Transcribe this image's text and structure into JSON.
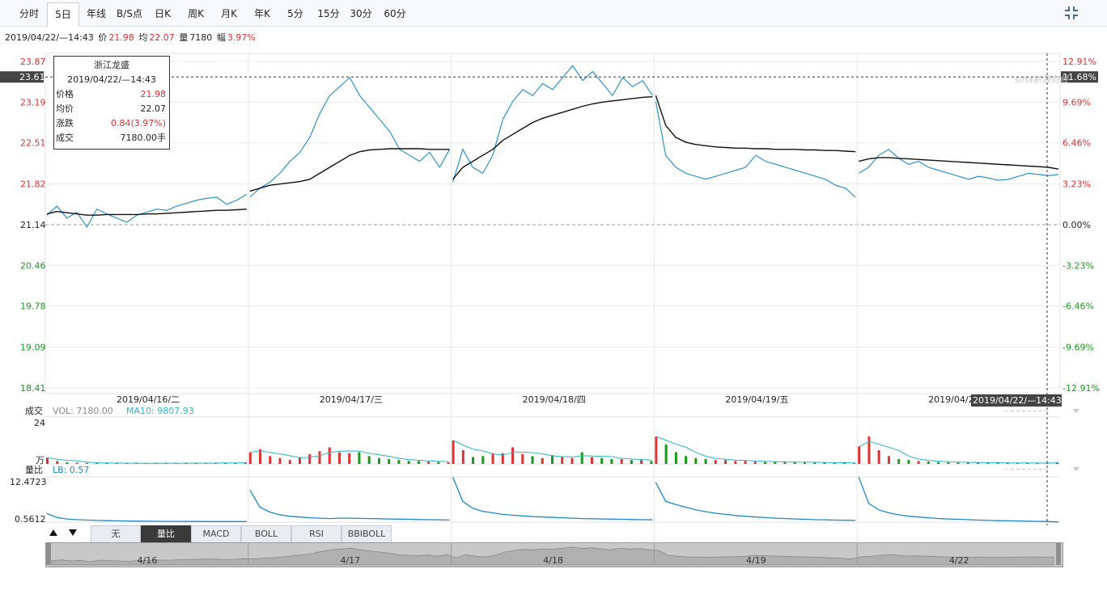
{
  "tabs": [
    {
      "label": "分时",
      "active": false
    },
    {
      "label": "5日",
      "active": true
    },
    {
      "label": "年线",
      "active": false
    },
    {
      "label": "B/S点",
      "active": false
    },
    {
      "label": "日K",
      "active": false
    },
    {
      "label": "周K",
      "active": false
    },
    {
      "label": "月K",
      "active": false
    },
    {
      "label": "年K",
      "active": false
    },
    {
      "label": "5分",
      "active": false
    },
    {
      "label": "15分",
      "active": false
    },
    {
      "label": "30分",
      "active": false
    },
    {
      "label": "60分",
      "active": false
    }
  ],
  "infobar": {
    "datetime": "2019/04/22/—14:43",
    "price_label": "价",
    "price": "21.98",
    "avg_label": "均",
    "avg": "22.07",
    "vol_label": "量",
    "vol": "7180",
    "amp_label": "幅",
    "amp": "3.97%"
  },
  "tooltip": {
    "name": "浙江龙盛",
    "datetime": "2019/04/22/—14:43",
    "rows": [
      {
        "k": "价格",
        "v": "21.98",
        "color": "#e03030"
      },
      {
        "k": "均价",
        "v": "22.07",
        "color": "#222222"
      },
      {
        "k": "涨跌",
        "v": "0.84(3.97%)",
        "color": "#e03030"
      },
      {
        "k": "成交",
        "v": "7180.00手",
        "color": "#222222"
      }
    ]
  },
  "watermark": "sina新浪财经",
  "colors": {
    "up": "#e03030",
    "down": "#1a9a1a",
    "price": "#1e88c8",
    "avg": "#111111",
    "ma": "#2ab7c6",
    "lb": "#1e88c8"
  },
  "chart_data": [
    {
      "type": "line",
      "title": "",
      "y_left_ticks": [
        "23.87",
        "23.19",
        "22.51",
        "21.82",
        "21.14",
        "20.46",
        "19.78",
        "19.09",
        "18.41"
      ],
      "y_left_values": [
        23.87,
        23.19,
        22.51,
        21.82,
        21.14,
        20.46,
        19.78,
        19.09,
        18.41
      ],
      "y_right_ticks": [
        "12.91%",
        "9.69%",
        "6.46%",
        "3.23%",
        "0.00%",
        "-3.23%",
        "-6.46%",
        "-9.69%",
        "-12.91%"
      ],
      "ylim": [
        18.41,
        23.87
      ],
      "prev_close": 21.14,
      "crosshair_price": "23.61",
      "crosshair_pct": "11.68%",
      "crosshair_time": "2019/04/22/—14:43",
      "day_labels": [
        "2019/04/16/二",
        "2019/04/17/三",
        "2019/04/18/四",
        "2019/04/19/五",
        "2019/04/2"
      ],
      "series": [
        {
          "name": "价",
          "values": [
            [
              21.3,
              21.45,
              21.25,
              21.35,
              21.1,
              21.4,
              21.32,
              21.25,
              21.18,
              21.3,
              21.35,
              21.4,
              21.38,
              21.45,
              21.5,
              21.55,
              21.58,
              21.6,
              21.48,
              21.55,
              21.65
            ],
            [
              21.6,
              21.75,
              21.85,
              22.0,
              22.2,
              22.35,
              22.6,
              23.0,
              23.3,
              23.45,
              23.6,
              23.3,
              23.1,
              22.9,
              22.7,
              22.4,
              22.3,
              22.2,
              22.35,
              22.1,
              22.4
            ],
            [
              21.85,
              22.4,
              22.1,
              22.0,
              22.3,
              22.9,
              23.2,
              23.4,
              23.3,
              23.5,
              23.4,
              23.6,
              23.8,
              23.55,
              23.7,
              23.5,
              23.3,
              23.6,
              23.45,
              23.55,
              23.3
            ],
            [
              23.2,
              22.3,
              22.1,
              22.0,
              21.95,
              21.9,
              21.95,
              22.0,
              22.05,
              22.1,
              22.3,
              22.2,
              22.15,
              22.1,
              22.05,
              22.0,
              21.95,
              21.9,
              21.8,
              21.75,
              21.6
            ],
            [
              22.0,
              22.1,
              22.3,
              22.4,
              22.25,
              22.15,
              22.2,
              22.1,
              22.05,
              22.0,
              21.95,
              21.9,
              21.95,
              21.92,
              21.88,
              21.9,
              21.95,
              22.0,
              21.98,
              21.96,
              21.98
            ]
          ]
        },
        {
          "name": "均",
          "values": [
            [
              21.32,
              21.36,
              21.34,
              21.32,
              21.3,
              21.3,
              21.31,
              21.31,
              21.31,
              21.31,
              21.32,
              21.32,
              21.33,
              21.34,
              21.35,
              21.36,
              21.37,
              21.38,
              21.38,
              21.39,
              21.4
            ],
            [
              21.7,
              21.75,
              21.8,
              21.82,
              21.84,
              21.86,
              21.9,
              22.0,
              22.1,
              22.2,
              22.3,
              22.36,
              22.39,
              22.4,
              22.41,
              22.41,
              22.41,
              22.41,
              22.4,
              22.4,
              22.4
            ],
            [
              21.9,
              22.1,
              22.2,
              22.3,
              22.4,
              22.55,
              22.65,
              22.75,
              22.85,
              22.92,
              22.97,
              23.02,
              23.07,
              23.12,
              23.16,
              23.19,
              23.21,
              23.23,
              23.25,
              23.27,
              23.28
            ],
            [
              23.3,
              22.8,
              22.6,
              22.52,
              22.48,
              22.46,
              22.44,
              22.43,
              22.42,
              22.42,
              22.41,
              22.41,
              22.4,
              22.4,
              22.4,
              22.39,
              22.39,
              22.38,
              22.38,
              22.37,
              22.36
            ],
            [
              22.2,
              22.24,
              22.26,
              22.26,
              22.25,
              22.24,
              22.23,
              22.22,
              22.21,
              22.2,
              22.19,
              22.18,
              22.17,
              22.16,
              22.15,
              22.14,
              22.13,
              22.12,
              22.11,
              22.1,
              22.07
            ]
          ]
        }
      ]
    },
    {
      "type": "bar",
      "title": "成交",
      "vol_label": "VOL: 7180.00",
      "ma_label": "MA10: 9807.93",
      "y_top": "24",
      "y_unit": "万",
      "ylim": [
        0,
        24
      ],
      "series": [
        {
          "name": "VOL",
          "values": [
            [
              3.2,
              1.5,
              0.9,
              0.6,
              0.5,
              0.4,
              0.5,
              0.4,
              0.3,
              0.4,
              0.3,
              0.5,
              0.4,
              0.3,
              0.4,
              0.5,
              0.4,
              0.5,
              0.6,
              0.5,
              0.8
            ],
            [
              6.0,
              7.5,
              4.0,
              3.0,
              2.0,
              3.5,
              5.0,
              6.5,
              8.5,
              6.0,
              5.5,
              6.0,
              4.0,
              3.0,
              2.5,
              2.0,
              1.5,
              1.5,
              1.2,
              1.0,
              0.8
            ],
            [
              12.0,
              7.0,
              3.5,
              4.0,
              5.5,
              5.5,
              8.5,
              5.0,
              4.0,
              3.0,
              4.5,
              3.5,
              3.0,
              6.0,
              3.5,
              3.0,
              2.5,
              2.5,
              2.0,
              2.0,
              1.5
            ],
            [
              14.0,
              10.0,
              6.0,
              4.0,
              3.0,
              2.5,
              2.0,
              2.0,
              1.5,
              1.5,
              1.2,
              1.0,
              1.0,
              1.0,
              0.8,
              0.8,
              0.7,
              0.6,
              0.6,
              0.5,
              0.5
            ],
            [
              9.0,
              14.0,
              7.0,
              4.0,
              2.5,
              2.0,
              1.5,
              1.2,
              1.0,
              0.8,
              0.8,
              0.7,
              0.6,
              0.6,
              0.5,
              0.5,
              0.5,
              0.5,
              0.4,
              0.5,
              0.9
            ]
          ]
        }
      ]
    },
    {
      "type": "line",
      "title": "量比",
      "lb_label": "LB: 0.57",
      "y_top": "12.4723",
      "y_bottom": "0.5612",
      "ylim": [
        0.5612,
        12.4723
      ],
      "series": [
        {
          "name": "LB",
          "values": [
            [
              2.8,
              1.8,
              1.4,
              1.2,
              1.1,
              1.0,
              0.95,
              0.9,
              0.85,
              0.82,
              0.8,
              0.78,
              0.76,
              0.75,
              0.74,
              0.73,
              0.72,
              0.71,
              0.7,
              0.7,
              0.7
            ],
            [
              9.0,
              4.5,
              3.2,
              2.5,
              2.1,
              1.9,
              1.7,
              1.6,
              1.5,
              1.6,
              1.6,
              1.55,
              1.5,
              1.45,
              1.4,
              1.35,
              1.3,
              1.25,
              1.2,
              1.15,
              1.1
            ],
            [
              12.4,
              6.0,
              4.2,
              3.4,
              3.0,
              2.6,
              2.4,
              2.2,
              2.0,
              1.9,
              1.8,
              1.7,
              1.6,
              1.5,
              1.45,
              1.4,
              1.35,
              1.3,
              1.25,
              1.2,
              1.15
            ],
            [
              11.0,
              6.0,
              5.2,
              4.5,
              3.8,
              3.3,
              2.9,
              2.6,
              2.3,
              2.1,
              1.9,
              1.75,
              1.6,
              1.5,
              1.4,
              1.3,
              1.2,
              1.15,
              1.1,
              1.05,
              1.0
            ],
            [
              12.4,
              5.5,
              3.8,
              3.0,
              2.5,
              2.1,
              1.9,
              1.7,
              1.5,
              1.4,
              1.3,
              1.2,
              1.1,
              1.0,
              0.95,
              0.9,
              0.85,
              0.8,
              0.75,
              0.7,
              0.6
            ]
          ]
        }
      ]
    }
  ],
  "indicator_tabs": [
    {
      "label": "无",
      "active": false
    },
    {
      "label": "量比",
      "active": true
    },
    {
      "label": "MACD",
      "active": false
    },
    {
      "label": "BOLL",
      "active": false
    },
    {
      "label": "RSI",
      "active": false
    },
    {
      "label": "BBIBOLL",
      "active": false
    }
  ],
  "navigator": {
    "labels": [
      "4/16",
      "4/17",
      "4/18",
      "4/19",
      "4/22"
    ]
  }
}
